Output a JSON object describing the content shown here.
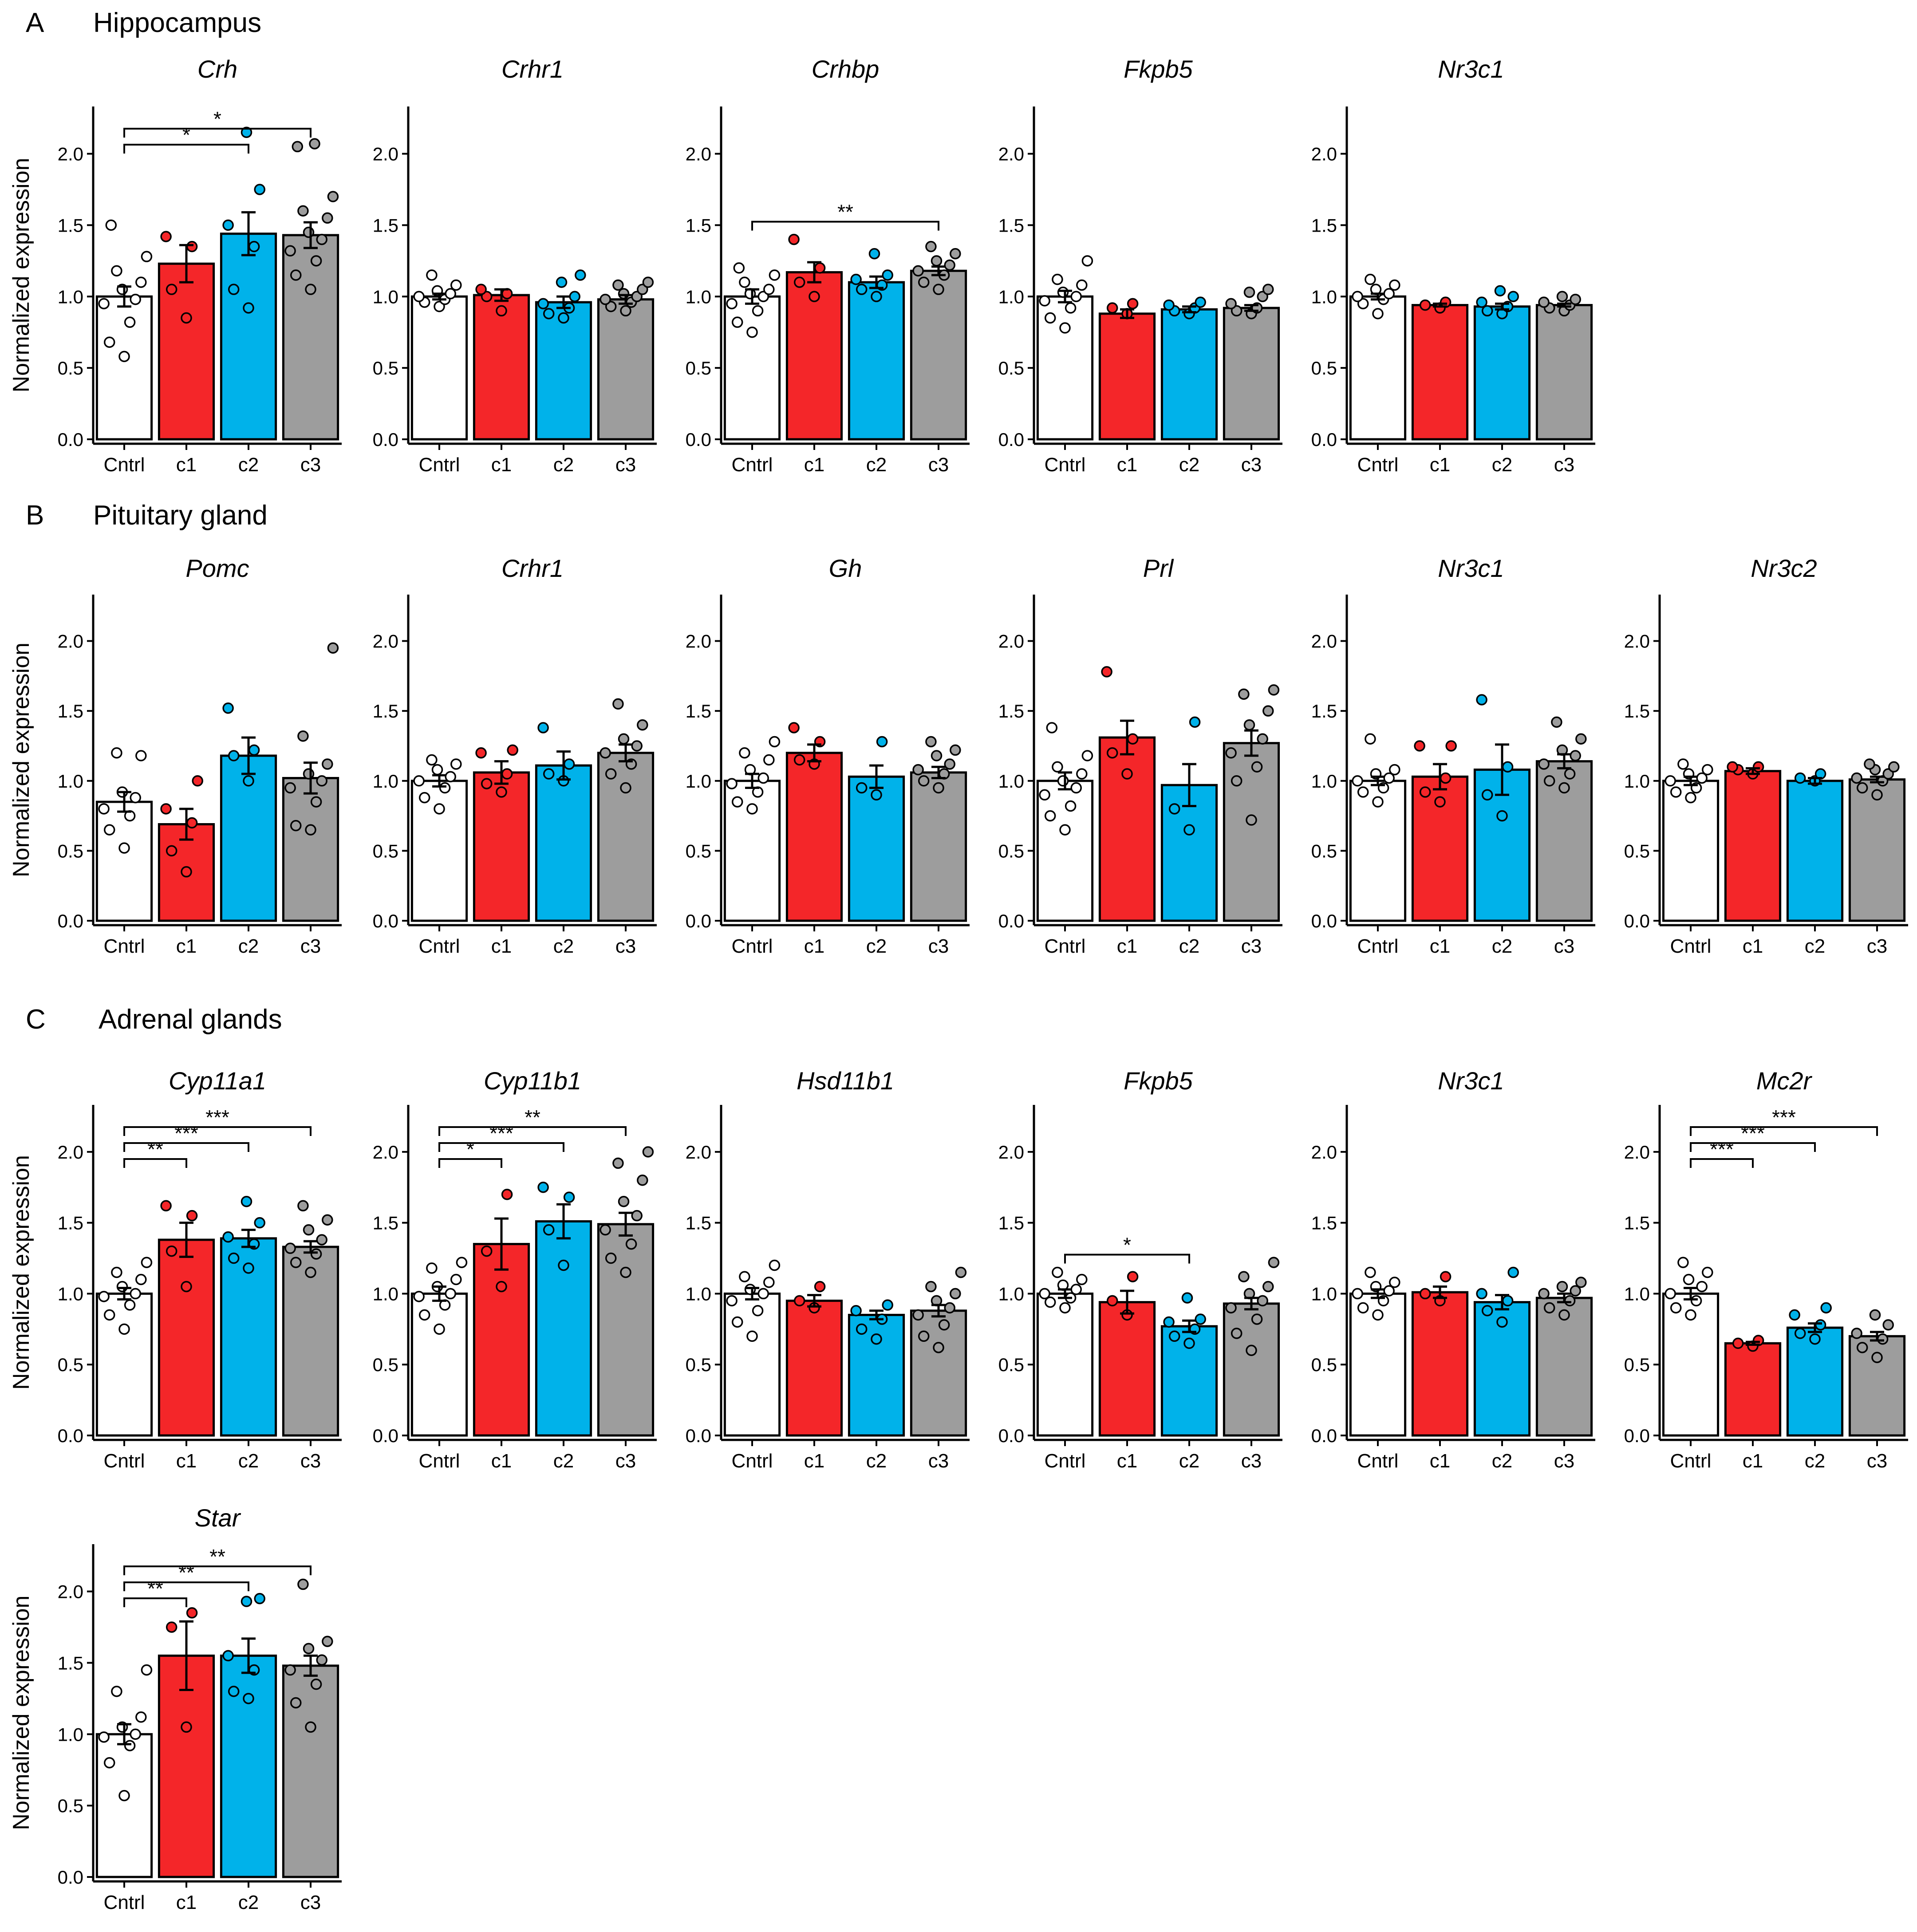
{
  "ylabel": "Normalized expression",
  "colors": {
    "Cntrl": "#ffffff",
    "c1": "#f42629",
    "c2": "#00b2ea",
    "c3": "#9d9d9d"
  },
  "sections": [
    {
      "letter": "A",
      "title": "Hippocampus"
    },
    {
      "letter": "B",
      "title": "Pituitary gland"
    },
    {
      "letter": "C",
      "title": "Adrenal glands"
    }
  ],
  "chart_data": [
    {
      "section": "A",
      "type": "bar",
      "title": "Crh",
      "categories": [
        "Cntrl",
        "c1",
        "c2",
        "c3"
      ],
      "values": [
        1.0,
        1.23,
        1.44,
        1.43
      ],
      "errors": [
        0.07,
        0.13,
        0.15,
        0.09
      ],
      "ylim": [
        0,
        2.3
      ],
      "yticks": [
        "0.0",
        "0.5",
        "1.0",
        "1.5",
        "2.0"
      ],
      "points": [
        [
          0.58,
          0.68,
          0.82,
          0.95,
          0.98,
          1.05,
          1.1,
          1.18,
          1.28,
          1.5
        ],
        [
          0.85,
          1.05,
          1.35,
          1.42
        ],
        [
          0.92,
          1.05,
          1.35,
          1.5,
          1.75,
          2.15
        ],
        [
          1.05,
          1.15,
          1.25,
          1.32,
          1.4,
          1.45,
          1.55,
          1.6,
          1.7,
          2.05,
          2.07
        ]
      ],
      "significance": [
        {
          "from": 0,
          "to": 2,
          "label": "*"
        },
        {
          "from": 0,
          "to": 3,
          "label": "*"
        }
      ]
    },
    {
      "section": "A",
      "type": "bar",
      "title": "Crhr1",
      "categories": [
        "Cntrl",
        "c1",
        "c2",
        "c3"
      ],
      "values": [
        1.0,
        1.01,
        0.96,
        0.98
      ],
      "errors": [
        0.02,
        0.04,
        0.04,
        0.03
      ],
      "ylim": [
        0,
        2.3
      ],
      "yticks": [
        "0.0",
        "0.5",
        "1.0",
        "1.5",
        "2.0"
      ],
      "points": [
        [
          0.93,
          0.96,
          0.98,
          1.0,
          1.02,
          1.04,
          1.08,
          1.15
        ],
        [
          0.9,
          1.0,
          1.02,
          1.05
        ],
        [
          0.85,
          0.88,
          0.92,
          0.95,
          1.0,
          1.1,
          1.15
        ],
        [
          0.9,
          0.93,
          0.96,
          0.98,
          1.0,
          1.02,
          1.05,
          1.08,
          1.1
        ]
      ],
      "significance": []
    },
    {
      "section": "A",
      "type": "bar",
      "title": "Crhbp",
      "categories": [
        "Cntrl",
        "c1",
        "c2",
        "c3"
      ],
      "values": [
        1.0,
        1.17,
        1.1,
        1.18
      ],
      "errors": [
        0.05,
        0.07,
        0.04,
        0.03
      ],
      "ylim": [
        0,
        2.3
      ],
      "yticks": [
        "0.0",
        "0.5",
        "1.0",
        "1.5",
        "2.0"
      ],
      "points": [
        [
          0.75,
          0.82,
          0.9,
          0.95,
          1.0,
          1.02,
          1.05,
          1.1,
          1.15,
          1.2
        ],
        [
          1.0,
          1.1,
          1.2,
          1.4
        ],
        [
          1.0,
          1.05,
          1.08,
          1.12,
          1.15,
          1.3
        ],
        [
          1.05,
          1.1,
          1.15,
          1.18,
          1.22,
          1.25,
          1.3,
          1.35
        ]
      ],
      "significance": [
        {
          "from": 0,
          "to": 3,
          "label": "**"
        }
      ]
    },
    {
      "section": "A",
      "type": "bar",
      "title": "Fkpb5",
      "categories": [
        "Cntrl",
        "c1",
        "c2",
        "c3"
      ],
      "values": [
        1.0,
        0.88,
        0.91,
        0.92
      ],
      "errors": [
        0.04,
        0.03,
        0.02,
        0.02
      ],
      "ylim": [
        0,
        2.3
      ],
      "yticks": [
        "0.0",
        "0.5",
        "1.0",
        "1.5",
        "2.0"
      ],
      "points": [
        [
          0.78,
          0.85,
          0.92,
          0.97,
          1.0,
          1.03,
          1.08,
          1.12,
          1.25
        ],
        [
          0.88,
          0.92,
          0.95
        ],
        [
          0.88,
          0.9,
          0.92,
          0.94,
          0.96
        ],
        [
          0.88,
          0.9,
          0.92,
          0.95,
          1.0,
          1.03,
          1.05
        ]
      ],
      "significance": []
    },
    {
      "section": "A",
      "type": "bar",
      "title": "Nr3c1",
      "categories": [
        "Cntrl",
        "c1",
        "c2",
        "c3"
      ],
      "values": [
        1.0,
        0.94,
        0.93,
        0.94
      ],
      "errors": [
        0.02,
        0.01,
        0.02,
        0.01
      ],
      "ylim": [
        0,
        2.3
      ],
      "yticks": [
        "0.0",
        "0.5",
        "1.0",
        "1.5",
        "2.0"
      ],
      "points": [
        [
          0.88,
          0.95,
          0.98,
          1.0,
          1.02,
          1.05,
          1.08,
          1.12
        ],
        [
          0.92,
          0.94,
          0.96
        ],
        [
          0.88,
          0.9,
          0.93,
          0.96,
          1.0,
          1.04
        ],
        [
          0.9,
          0.92,
          0.94,
          0.96,
          0.98,
          1.0
        ]
      ],
      "significance": []
    },
    {
      "section": "B",
      "type": "bar",
      "title": "Pomc",
      "categories": [
        "Cntrl",
        "c1",
        "c2",
        "c3"
      ],
      "values": [
        0.85,
        0.69,
        1.18,
        1.02
      ],
      "errors": [
        0.07,
        0.11,
        0.13,
        0.11
      ],
      "ylim": [
        0,
        2.3
      ],
      "yticks": [
        "0.0",
        "0.5",
        "1.0",
        "1.5",
        "2.0"
      ],
      "points": [
        [
          0.52,
          0.65,
          0.75,
          0.8,
          0.88,
          0.92,
          1.18,
          1.2
        ],
        [
          0.35,
          0.5,
          0.7,
          0.8,
          1.0
        ],
        [
          1.0,
          1.18,
          1.22,
          1.52
        ],
        [
          0.65,
          0.68,
          0.85,
          0.95,
          1.0,
          1.05,
          1.12,
          1.32,
          1.95
        ]
      ],
      "significance": []
    },
    {
      "section": "B",
      "type": "bar",
      "title": "Crhr1",
      "categories": [
        "Cntrl",
        "c1",
        "c2",
        "c3"
      ],
      "values": [
        1.0,
        1.06,
        1.11,
        1.2
      ],
      "errors": [
        0.04,
        0.08,
        0.1,
        0.06
      ],
      "ylim": [
        0,
        2.3
      ],
      "yticks": [
        "0.0",
        "0.5",
        "1.0",
        "1.5",
        "2.0"
      ],
      "points": [
        [
          0.8,
          0.88,
          0.95,
          1.0,
          1.03,
          1.08,
          1.12,
          1.15
        ],
        [
          0.92,
          0.98,
          1.05,
          1.2,
          1.22
        ],
        [
          1.0,
          1.05,
          1.12,
          1.38
        ],
        [
          0.95,
          1.05,
          1.12,
          1.2,
          1.25,
          1.3,
          1.4,
          1.55
        ]
      ],
      "significance": []
    },
    {
      "section": "B",
      "type": "bar",
      "title": "Gh",
      "categories": [
        "Cntrl",
        "c1",
        "c2",
        "c3"
      ],
      "values": [
        1.0,
        1.2,
        1.03,
        1.06
      ],
      "errors": [
        0.05,
        0.06,
        0.08,
        0.04
      ],
      "ylim": [
        0,
        2.3
      ],
      "yticks": [
        "0.0",
        "0.5",
        "1.0",
        "1.5",
        "2.0"
      ],
      "points": [
        [
          0.8,
          0.85,
          0.92,
          0.98,
          1.02,
          1.08,
          1.15,
          1.2,
          1.28
        ],
        [
          1.12,
          1.15,
          1.28,
          1.38
        ],
        [
          0.9,
          0.95,
          1.28
        ],
        [
          0.95,
          1.0,
          1.05,
          1.08,
          1.12,
          1.18,
          1.22,
          1.28
        ]
      ],
      "significance": []
    },
    {
      "section": "B",
      "type": "bar",
      "title": "Prl",
      "categories": [
        "Cntrl",
        "c1",
        "c2",
        "c3"
      ],
      "values": [
        1.0,
        1.31,
        0.97,
        1.27
      ],
      "errors": [
        0.06,
        0.12,
        0.15,
        0.09
      ],
      "ylim": [
        0,
        2.3
      ],
      "yticks": [
        "0.0",
        "0.5",
        "1.0",
        "1.5",
        "2.0"
      ],
      "points": [
        [
          0.65,
          0.75,
          0.82,
          0.9,
          0.95,
          1.0,
          1.05,
          1.1,
          1.18,
          1.38
        ],
        [
          1.05,
          1.2,
          1.3,
          1.78
        ],
        [
          0.65,
          0.8,
          1.42
        ],
        [
          0.72,
          1.0,
          1.1,
          1.2,
          1.3,
          1.4,
          1.5,
          1.62,
          1.65
        ]
      ],
      "significance": []
    },
    {
      "section": "B",
      "type": "bar",
      "title": "Nr3c1",
      "categories": [
        "Cntrl",
        "c1",
        "c2",
        "c3"
      ],
      "values": [
        1.0,
        1.03,
        1.08,
        1.14
      ],
      "errors": [
        0.03,
        0.09,
        0.18,
        0.05
      ],
      "ylim": [
        0,
        2.3
      ],
      "yticks": [
        "0.0",
        "0.5",
        "1.0",
        "1.5",
        "2.0"
      ],
      "points": [
        [
          0.85,
          0.92,
          0.95,
          1.0,
          1.02,
          1.05,
          1.08,
          1.3
        ],
        [
          0.85,
          0.92,
          1.02,
          1.25,
          1.25
        ],
        [
          0.75,
          0.9,
          1.1,
          1.58
        ],
        [
          0.95,
          1.0,
          1.05,
          1.12,
          1.18,
          1.22,
          1.3,
          1.42
        ]
      ],
      "significance": []
    },
    {
      "section": "B",
      "type": "bar",
      "title": "Nr3c2",
      "categories": [
        "Cntrl",
        "c1",
        "c2",
        "c3"
      ],
      "values": [
        1.0,
        1.07,
        1.0,
        1.01
      ],
      "errors": [
        0.03,
        0.02,
        0.02,
        0.02
      ],
      "ylim": [
        0,
        2.3
      ],
      "yticks": [
        "0.0",
        "0.5",
        "1.0",
        "1.5",
        "2.0"
      ],
      "points": [
        [
          0.88,
          0.92,
          0.95,
          1.0,
          1.02,
          1.05,
          1.08,
          1.12
        ],
        [
          1.05,
          1.08,
          1.1,
          1.1
        ],
        [
          1.0,
          1.02,
          1.05
        ],
        [
          0.9,
          0.95,
          1.0,
          1.02,
          1.05,
          1.08,
          1.1,
          1.12
        ]
      ],
      "significance": []
    },
    {
      "section": "C",
      "type": "bar",
      "title": "Cyp11a1",
      "categories": [
        "Cntrl",
        "c1",
        "c2",
        "c3"
      ],
      "values": [
        1.0,
        1.38,
        1.39,
        1.33
      ],
      "errors": [
        0.04,
        0.12,
        0.06,
        0.04
      ],
      "ylim": [
        0,
        2.3
      ],
      "yticks": [
        "0.0",
        "0.5",
        "1.0",
        "1.5",
        "2.0"
      ],
      "points": [
        [
          0.75,
          0.85,
          0.92,
          0.98,
          1.0,
          1.05,
          1.1,
          1.15,
          1.22
        ],
        [
          1.05,
          1.3,
          1.55,
          1.62
        ],
        [
          1.18,
          1.25,
          1.35,
          1.4,
          1.5,
          1.65
        ],
        [
          1.15,
          1.22,
          1.28,
          1.32,
          1.38,
          1.45,
          1.52,
          1.62
        ]
      ],
      "significance": [
        {
          "from": 0,
          "to": 1,
          "label": "**"
        },
        {
          "from": 0,
          "to": 2,
          "label": "***"
        },
        {
          "from": 0,
          "to": 3,
          "label": "***"
        }
      ]
    },
    {
      "section": "C",
      "type": "bar",
      "title": "Cyp11b1",
      "categories": [
        "Cntrl",
        "c1",
        "c2",
        "c3"
      ],
      "values": [
        1.0,
        1.35,
        1.51,
        1.49
      ],
      "errors": [
        0.05,
        0.18,
        0.12,
        0.08
      ],
      "ylim": [
        0,
        2.3
      ],
      "yticks": [
        "0.0",
        "0.5",
        "1.0",
        "1.5",
        "2.0"
      ],
      "points": [
        [
          0.75,
          0.85,
          0.92,
          0.98,
          1.0,
          1.05,
          1.1,
          1.18,
          1.22
        ],
        [
          1.05,
          1.3,
          1.7
        ],
        [
          1.2,
          1.45,
          1.68,
          1.75
        ],
        [
          1.15,
          1.25,
          1.35,
          1.45,
          1.55,
          1.65,
          1.8,
          1.92,
          2.0
        ]
      ],
      "significance": [
        {
          "from": 0,
          "to": 1,
          "label": "*"
        },
        {
          "from": 0,
          "to": 2,
          "label": "***"
        },
        {
          "from": 0,
          "to": 3,
          "label": "**"
        }
      ]
    },
    {
      "section": "C",
      "type": "bar",
      "title": "Hsd11b1",
      "categories": [
        "Cntrl",
        "c1",
        "c2",
        "c3"
      ],
      "values": [
        1.0,
        0.95,
        0.85,
        0.88
      ],
      "errors": [
        0.04,
        0.04,
        0.03,
        0.04
      ],
      "ylim": [
        0,
        2.3
      ],
      "yticks": [
        "0.0",
        "0.5",
        "1.0",
        "1.5",
        "2.0"
      ],
      "points": [
        [
          0.7,
          0.8,
          0.88,
          0.95,
          1.0,
          1.03,
          1.08,
          1.12,
          1.2
        ],
        [
          0.9,
          0.95,
          1.05
        ],
        [
          0.68,
          0.75,
          0.82,
          0.88,
          0.92
        ],
        [
          0.62,
          0.7,
          0.78,
          0.85,
          0.9,
          0.95,
          1.0,
          1.05,
          1.15
        ]
      ],
      "significance": []
    },
    {
      "section": "C",
      "type": "bar",
      "title": "Fkpb5",
      "categories": [
        "Cntrl",
        "c1",
        "c2",
        "c3"
      ],
      "values": [
        1.0,
        0.94,
        0.77,
        0.93
      ],
      "errors": [
        0.03,
        0.08,
        0.04,
        0.04
      ],
      "ylim": [
        0,
        2.3
      ],
      "yticks": [
        "0.0",
        "0.5",
        "1.0",
        "1.5",
        "2.0"
      ],
      "points": [
        [
          0.9,
          0.94,
          0.97,
          1.0,
          1.03,
          1.06,
          1.1,
          1.15
        ],
        [
          0.85,
          0.95,
          1.12
        ],
        [
          0.65,
          0.7,
          0.75,
          0.8,
          0.82,
          0.97
        ],
        [
          0.6,
          0.72,
          0.82,
          0.9,
          0.95,
          1.0,
          1.05,
          1.12,
          1.22
        ]
      ],
      "significance": [
        {
          "from": 0,
          "to": 2,
          "label": "*"
        }
      ]
    },
    {
      "section": "C",
      "type": "bar",
      "title": "Nr3c1",
      "categories": [
        "Cntrl",
        "c1",
        "c2",
        "c3"
      ],
      "values": [
        1.0,
        1.01,
        0.94,
        0.97
      ],
      "errors": [
        0.03,
        0.04,
        0.05,
        0.03
      ],
      "ylim": [
        0,
        2.3
      ],
      "yticks": [
        "0.0",
        "0.5",
        "1.0",
        "1.5",
        "2.0"
      ],
      "points": [
        [
          0.85,
          0.9,
          0.95,
          1.0,
          1.02,
          1.05,
          1.08,
          1.15
        ],
        [
          0.95,
          1.0,
          1.12
        ],
        [
          0.8,
          0.88,
          0.95,
          1.0,
          1.15
        ],
        [
          0.85,
          0.9,
          0.95,
          1.0,
          1.02,
          1.05,
          1.08
        ]
      ],
      "significance": []
    },
    {
      "section": "C",
      "type": "bar",
      "title": "Mc2r",
      "categories": [
        "Cntrl",
        "c1",
        "c2",
        "c3"
      ],
      "values": [
        1.0,
        0.65,
        0.76,
        0.7
      ],
      "errors": [
        0.04,
        0.01,
        0.03,
        0.03
      ],
      "ylim": [
        0,
        2.3
      ],
      "yticks": [
        "0.0",
        "0.5",
        "1.0",
        "1.5",
        "2.0"
      ],
      "points": [
        [
          0.85,
          0.9,
          0.95,
          1.0,
          1.05,
          1.1,
          1.15,
          1.22
        ],
        [
          0.63,
          0.65,
          0.67
        ],
        [
          0.68,
          0.72,
          0.78,
          0.85,
          0.9
        ],
        [
          0.55,
          0.62,
          0.68,
          0.72,
          0.78,
          0.85
        ]
      ],
      "significance": [
        {
          "from": 0,
          "to": 1,
          "label": "***"
        },
        {
          "from": 0,
          "to": 2,
          "label": "***"
        },
        {
          "from": 0,
          "to": 3,
          "label": "***"
        }
      ]
    },
    {
      "section": "C",
      "type": "bar",
      "title": "Star",
      "categories": [
        "Cntrl",
        "c1",
        "c2",
        "c3"
      ],
      "values": [
        1.0,
        1.55,
        1.55,
        1.48
      ],
      "errors": [
        0.07,
        0.24,
        0.12,
        0.07
      ],
      "ylim": [
        0,
        2.3
      ],
      "yticks": [
        "0.0",
        "0.5",
        "1.0",
        "1.5",
        "2.0"
      ],
      "points": [
        [
          0.57,
          0.8,
          0.92,
          0.98,
          1.0,
          1.05,
          1.12,
          1.3,
          1.45
        ],
        [
          1.05,
          1.75,
          1.85
        ],
        [
          1.25,
          1.3,
          1.45,
          1.55,
          1.95,
          1.93
        ],
        [
          1.05,
          1.22,
          1.35,
          1.45,
          1.52,
          1.6,
          1.65,
          2.05
        ]
      ],
      "significance": [
        {
          "from": 0,
          "to": 1,
          "label": "**"
        },
        {
          "from": 0,
          "to": 2,
          "label": "**"
        },
        {
          "from": 0,
          "to": 3,
          "label": "**"
        }
      ]
    }
  ]
}
